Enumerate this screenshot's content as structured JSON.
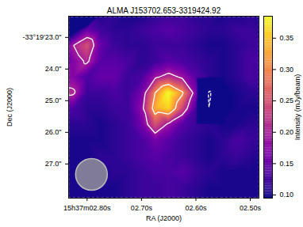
{
  "chart_data": {
    "type": "heatmap",
    "title": "ALMA J153702.653-3319424.92",
    "x_label": "RA (J2000)",
    "y_label": "Dec (J2000)",
    "xlim": [
      2.834,
      2.484
    ],
    "ylim": [
      22.33,
      28.08
    ],
    "xticks": [
      {
        "value": 2.8,
        "label": "15h37m02.80s"
      },
      {
        "value": 2.7,
        "label": "02.70s"
      },
      {
        "value": 2.6,
        "label": "02.60s"
      },
      {
        "value": 2.5,
        "label": "02.50s"
      }
    ],
    "yticks": [
      {
        "value": 23,
        "label": "-33°19'23.0\""
      },
      {
        "value": 24,
        "label": "24.0\""
      },
      {
        "value": 25,
        "label": "25.0\""
      },
      {
        "value": 26,
        "label": "26.0\""
      },
      {
        "value": 27,
        "label": "27.0\""
      }
    ],
    "ra": [
      2.85,
      2.825,
      2.8,
      2.775,
      2.75,
      2.725,
      2.7,
      2.675,
      2.65,
      2.625,
      2.6,
      2.575,
      2.55,
      2.525,
      2.5,
      2.475
    ],
    "dec": [
      22.25,
      22.75,
      23.25,
      23.75,
      24.25,
      24.75,
      25.25,
      25.75,
      26.25,
      26.75,
      27.25,
      27.75,
      28.25
    ],
    "cells": [
      [
        -0.1,
        -0.22,
        -0.05,
        0.1,
        0.11,
        0.1,
        0.1,
        0.11,
        0.12,
        0.12,
        0.11,
        0.11,
        0.1,
        0.1,
        0.11,
        0.1
      ],
      [
        0.09,
        0.06,
        0.15,
        0.12,
        0.11,
        0.11,
        0.12,
        0.13,
        0.14,
        0.13,
        0.12,
        0.11,
        0.11,
        0.12,
        0.12,
        0.11
      ],
      [
        0.11,
        0.2,
        0.25,
        0.15,
        0.12,
        0.11,
        0.11,
        0.12,
        0.12,
        0.12,
        0.11,
        0.1,
        0.1,
        0.11,
        0.12,
        0.12
      ],
      [
        0.12,
        0.17,
        0.21,
        0.14,
        0.14,
        0.13,
        0.11,
        0.12,
        0.14,
        0.13,
        0.12,
        0.11,
        0.1,
        0.11,
        0.13,
        0.13
      ],
      [
        0.19,
        0.17,
        0.13,
        0.15,
        0.15,
        0.12,
        0.13,
        0.19,
        0.22,
        0.19,
        0.14,
        0.11,
        0.1,
        0.11,
        0.13,
        0.12
      ],
      [
        0.22,
        0.21,
        0.12,
        0.12,
        0.13,
        0.12,
        0.16,
        0.3,
        0.39,
        0.31,
        0.17,
        -0.23,
        0.09,
        0.1,
        0.11,
        0.11
      ],
      [
        0.14,
        0.13,
        0.11,
        0.11,
        0.12,
        0.12,
        0.18,
        0.33,
        0.36,
        0.24,
        0.13,
        -0.21,
        0.09,
        0.1,
        0.1,
        0.1
      ],
      [
        0.11,
        0.11,
        0.11,
        0.1,
        0.11,
        0.12,
        0.16,
        0.25,
        0.19,
        0.14,
        0.12,
        0.11,
        0.1,
        0.1,
        0.11,
        0.11
      ],
      [
        0.1,
        0.1,
        0.1,
        0.1,
        0.11,
        0.12,
        0.13,
        0.16,
        0.14,
        0.12,
        0.11,
        0.1,
        0.11,
        0.13,
        0.12,
        0.11
      ],
      [
        0.1,
        0.1,
        0.1,
        0.11,
        0.11,
        0.12,
        0.13,
        0.14,
        0.13,
        0.12,
        0.11,
        0.1,
        0.11,
        0.12,
        0.11,
        0.1
      ],
      [
        0.1,
        0.1,
        0.1,
        0.1,
        0.11,
        0.11,
        0.12,
        0.13,
        0.13,
        0.14,
        0.12,
        0.11,
        0.1,
        0.1,
        0.1,
        0.1
      ],
      [
        0.1,
        0.1,
        0.1,
        0.1,
        0.1,
        0.11,
        0.12,
        0.12,
        0.13,
        0.12,
        0.11,
        0.1,
        0.1,
        0.1,
        0.1,
        0.1
      ],
      [
        0.1,
        0.1,
        0.1,
        0.1,
        0.1,
        0.11,
        0.12,
        0.12,
        0.13,
        0.12,
        0.11,
        0.1,
        0.1,
        0.1,
        0.1,
        0.1
      ]
    ],
    "contour_levels": [
      -0.2,
      0.2,
      0.3
    ],
    "beam": {
      "ra": 2.792,
      "dec": 27.33,
      "diameter": 1.0
    },
    "colorbar": {
      "label": "Intensity (mJy/beam)",
      "range": [
        0.095,
        0.385
      ],
      "ticks": [
        {
          "value": 0.1,
          "label": "0.10"
        },
        0.15,
        {
          "value": 0.2,
          "label": "0.20"
        },
        0.25,
        {
          "value": 0.3,
          "label": "0.30"
        },
        0.35
      ]
    }
  }
}
